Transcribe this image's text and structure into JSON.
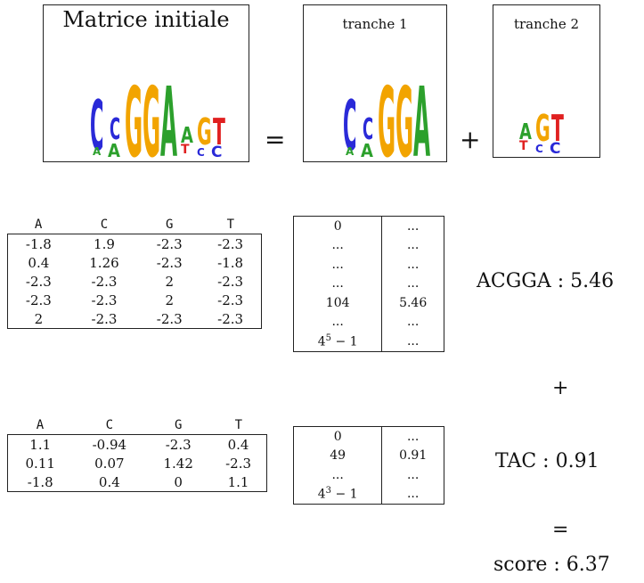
{
  "top": {
    "initial_title": "Matrice initiale",
    "slice1_title": "tranche 1",
    "slice2_title": "tranche 2",
    "equals": "=",
    "plus": "+"
  },
  "colors": {
    "A": "#2ca02c",
    "C": "#2a2ad8",
    "G": "#f2a400",
    "T": "#e02020"
  },
  "logos": {
    "initial": [
      "CC",
      "GGA",
      "AGT"
    ],
    "slice1": [
      "CC",
      "GGA"
    ],
    "slice2": [
      "AGT"
    ]
  },
  "matrix1": {
    "headers": [
      "A",
      "C",
      "G",
      "T"
    ],
    "rows": [
      [
        "-1.8",
        "1.9",
        "-2.3",
        "-2.3"
      ],
      [
        "0.4",
        "1.26",
        "-2.3",
        "-1.8"
      ],
      [
        "-2.3",
        "-2.3",
        "2",
        "-2.3"
      ],
      [
        "-2.3",
        "-2.3",
        "2",
        "-2.3"
      ],
      [
        "2",
        "-2.3",
        "-2.3",
        "-2.3"
      ]
    ]
  },
  "matrix2": {
    "headers": [
      "A",
      "C",
      "G",
      "T"
    ],
    "rows": [
      [
        "1.1",
        "-0.94",
        "-2.3",
        "0.4"
      ],
      [
        "0.11",
        "0.07",
        "1.42",
        "-2.3"
      ],
      [
        "-1.8",
        "0.4",
        "0",
        "1.1"
      ]
    ]
  },
  "lookup1": {
    "rows": [
      [
        "0",
        "..."
      ],
      [
        "...",
        "..."
      ],
      [
        "...",
        "..."
      ],
      [
        "...",
        "..."
      ],
      [
        "104",
        "5.46"
      ],
      [
        "...",
        "..."
      ]
    ],
    "last": {
      "base": "4",
      "exp": "5",
      "tail": " − 1",
      "value": "..."
    }
  },
  "lookup2": {
    "rows": [
      [
        "0",
        "..."
      ],
      [
        "49",
        "0.91"
      ],
      [
        "...",
        "..."
      ]
    ],
    "last": {
      "base": "4",
      "exp": "3",
      "tail": " − 1",
      "value": "..."
    }
  },
  "results": {
    "slice1": "ACGGA : 5.46",
    "plus": "+",
    "slice2": "TAC : 0.91",
    "equals": "=",
    "score": "score : 6.37"
  }
}
